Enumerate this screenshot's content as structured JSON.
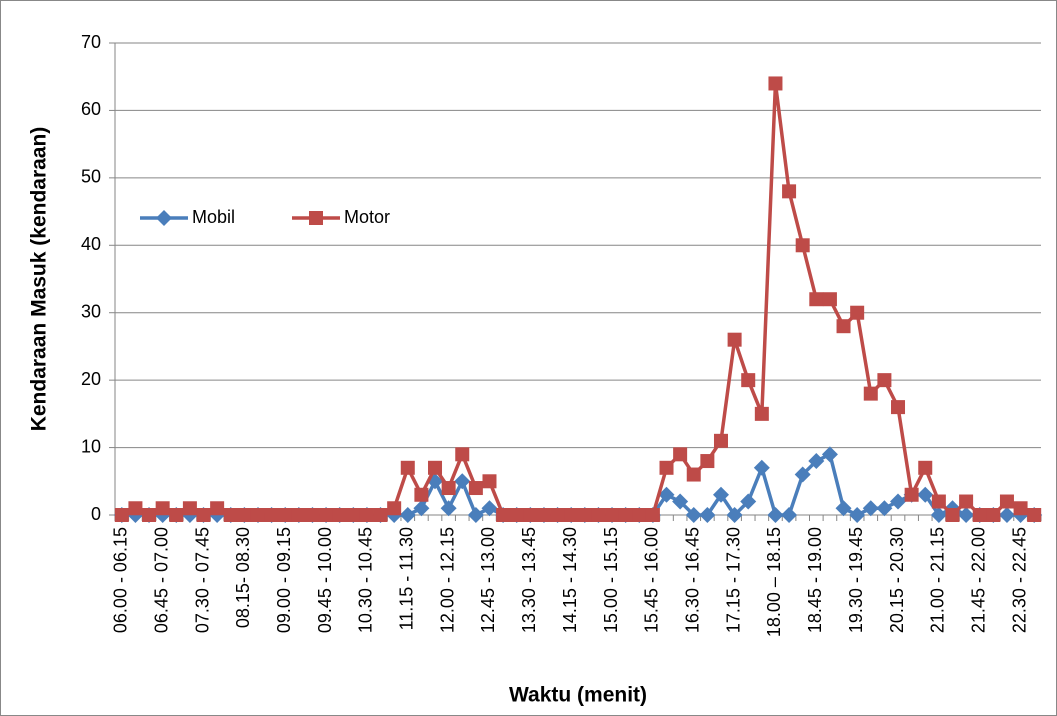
{
  "chart_data": {
    "type": "line",
    "x_label": "Waktu (menit)",
    "y_label": "Kendaraan Masuk (kendaraan)",
    "categories": [
      "06.00 - 06.15",
      null,
      null,
      "06.45 - 07.00",
      null,
      null,
      "07.30 - 07.45",
      null,
      null,
      "08.15- 08.30",
      null,
      null,
      "09.00 - 09.15",
      null,
      null,
      "09.45 - 10.00",
      null,
      null,
      "10.30 - 10.45",
      null,
      null,
      "11.15 - 11.30",
      null,
      null,
      "12.00 - 12.15",
      null,
      null,
      "12.45 - 13.00",
      null,
      null,
      "13.30 - 13.45",
      null,
      null,
      "14.15 - 14.30",
      null,
      null,
      "15.00 - 15.15",
      null,
      null,
      "15.45 - 16.00",
      null,
      null,
      "16.30 - 16.45",
      null,
      null,
      "17.15 - 17.30",
      null,
      null,
      "18.00 – 18.15",
      null,
      null,
      "18.45 - 19.00",
      null,
      null,
      "19.30 - 19.45",
      null,
      null,
      "20.15 - 20.30",
      null,
      null,
      "21.00 - 21.15",
      null,
      null,
      "21.45 - 22.00",
      null,
      null,
      "22.30 - 22.45",
      null
    ],
    "series": [
      {
        "name": "Mobil",
        "color": "#4a7ebb",
        "marker": "diamond",
        "values": [
          0,
          0,
          0,
          0,
          0,
          0,
          0,
          0,
          0,
          0,
          0,
          0,
          0,
          0,
          0,
          0,
          0,
          0,
          0,
          0,
          0,
          0,
          1,
          5,
          1,
          5,
          0,
          1,
          0,
          0,
          0,
          0,
          0,
          0,
          0,
          0,
          0,
          0,
          0,
          0,
          3,
          2,
          0,
          0,
          3,
          0,
          2,
          7,
          0,
          0,
          6,
          8,
          9,
          1,
          0,
          1,
          1,
          2,
          3,
          3,
          0,
          1,
          0,
          0,
          0,
          0,
          0,
          0
        ]
      },
      {
        "name": "Motor",
        "color": "#be4b48",
        "marker": "square",
        "values": [
          0,
          1,
          0,
          1,
          0,
          1,
          0,
          1,
          0,
          0,
          0,
          0,
          0,
          0,
          0,
          0,
          0,
          0,
          0,
          0,
          1,
          7,
          3,
          7,
          4,
          9,
          4,
          5,
          0,
          0,
          0,
          0,
          0,
          0,
          0,
          0,
          0,
          0,
          0,
          0,
          7,
          9,
          6,
          8,
          11,
          26,
          20,
          15,
          64,
          48,
          40,
          32,
          32,
          28,
          30,
          18,
          20,
          16,
          3,
          7,
          2,
          0,
          2,
          0,
          0,
          2,
          1,
          0
        ]
      }
    ],
    "ylim": [
      0,
      70
    ],
    "yticks": [
      0,
      10,
      20,
      30,
      40,
      50,
      60,
      70
    ],
    "grid": true,
    "legend": "left"
  }
}
